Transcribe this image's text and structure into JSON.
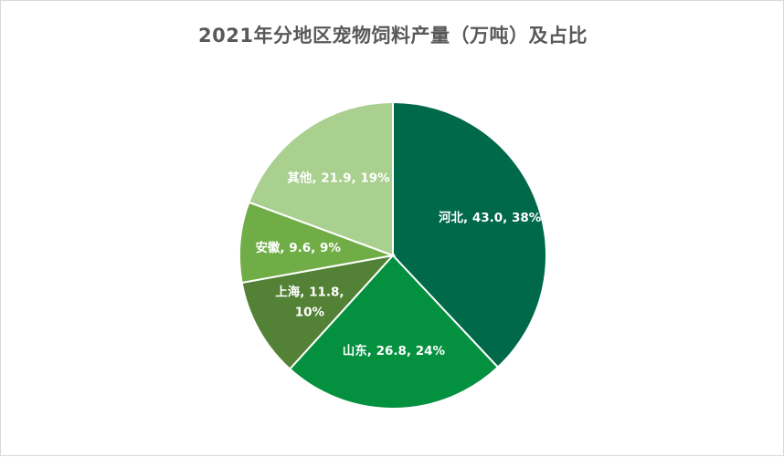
{
  "chart_data": {
    "type": "pie",
    "title": "2021年分地区宠物饲料产量（万吨）及占比",
    "categories": [
      "河北",
      "山东",
      "上海",
      "安徽",
      "其他"
    ],
    "values": [
      43.0,
      26.8,
      11.8,
      9.6,
      21.9
    ],
    "percents": [
      "38%",
      "24%",
      "10%",
      "9%",
      "19%"
    ],
    "labels": [
      [
        "河北, 43.0, 38%"
      ],
      [
        "山东, 26.8, 24%"
      ],
      [
        "上海, 11.8,",
        "10%"
      ],
      [
        "安徽, 9.6, 9%"
      ],
      [
        "其他, 21.9, 19%"
      ]
    ],
    "colors": [
      "#00694a",
      "#03903f",
      "#538135",
      "#70ad47",
      "#a9d08e"
    ],
    "start_angle_deg": 0,
    "direction": "clockwise",
    "legend": "none"
  }
}
